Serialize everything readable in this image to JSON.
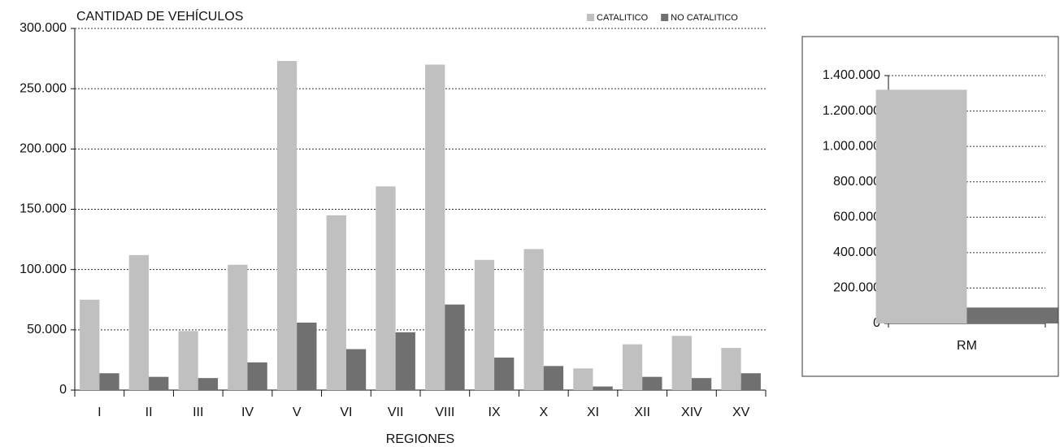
{
  "chart_data": [
    {
      "type": "bar",
      "title": "CANTIDAD DE VEHÍCULOS",
      "x_label": "REGIONES",
      "categories": [
        "I",
        "II",
        "III",
        "IV",
        "V",
        "VI",
        "VII",
        "VIII",
        "IX",
        "X",
        "XI",
        "XII",
        "XIV",
        "XV"
      ],
      "series": [
        {
          "name": "CATALITICO",
          "color": "#c0c0c0",
          "values": [
            75000,
            112000,
            49000,
            104000,
            273000,
            145000,
            169000,
            270000,
            108000,
            117000,
            18000,
            38000,
            45000,
            35000
          ]
        },
        {
          "name": "NO CATALITICO",
          "color": "#707070",
          "values": [
            14000,
            11000,
            10000,
            23000,
            56000,
            34000,
            48000,
            71000,
            27000,
            20000,
            3000,
            11000,
            10000,
            14000
          ]
        }
      ],
      "ylim": [
        0,
        300000
      ],
      "yticks": [
        0,
        {
          "value": 50000,
          "label": "50.000"
        },
        {
          "value": 100000,
          "label": "100.000"
        },
        {
          "value": 150000,
          "label": "150.000"
        },
        {
          "value": 200000,
          "label": "200.000"
        },
        {
          "value": 250000,
          "label": "250.000"
        },
        {
          "value": 300000,
          "label": "300.000"
        }
      ],
      "grid": true,
      "legend": "top-right"
    },
    {
      "type": "bar",
      "categories": [
        "RM"
      ],
      "series": [
        {
          "color": "#c0c0c0",
          "values": [
            1320000
          ]
        },
        {
          "color": "#707070",
          "values": [
            90000
          ]
        }
      ],
      "ylim": [
        0,
        1400000
      ],
      "yticks": [
        0,
        {
          "value": 200000,
          "label": "200.000"
        },
        {
          "value": 400000,
          "label": "400.000"
        },
        {
          "value": 600000,
          "label": "600.000"
        },
        {
          "value": 800000,
          "label": "800.000"
        },
        {
          "value": 1000000,
          "label": "1.000.000"
        },
        {
          "value": 1200000,
          "label": "1.200.000"
        },
        {
          "value": 1400000,
          "label": "1.400.000"
        }
      ],
      "grid": true
    }
  ]
}
